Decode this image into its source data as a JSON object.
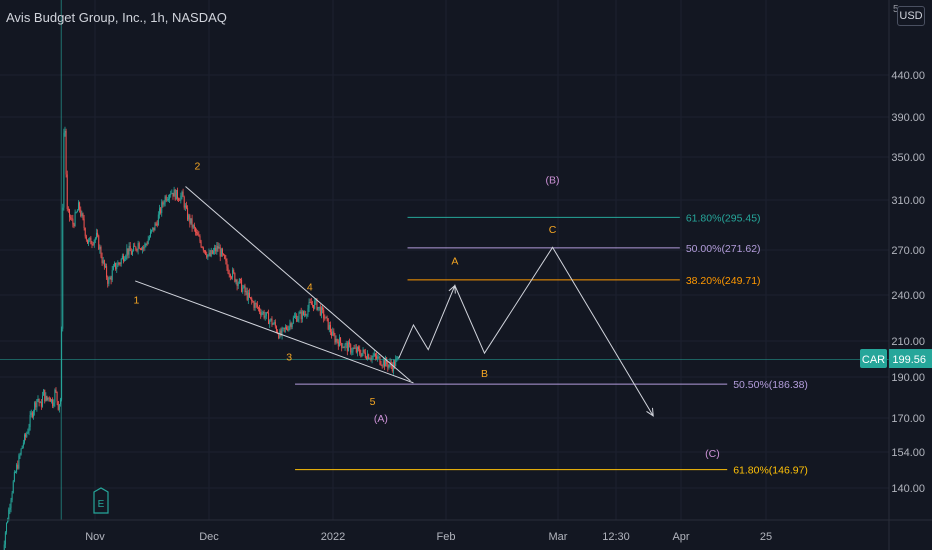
{
  "header": {
    "title": "Avis Budget Group, Inc., 1h, NASDAQ",
    "currency": "USD",
    "price_scale_top_cut": "5"
  },
  "price_badge": {
    "ticker": "CAR",
    "price": "199.56"
  },
  "earnings_marker": "E",
  "colors": {
    "background": "#131722",
    "axis_text": "#b2b5be",
    "candle_up": "#26a69a",
    "candle_down": "#ef5350",
    "wave_orange": "#f5a623",
    "wave_violet": "#ce93d8",
    "fib_teal": "#26a69a",
    "fib_lavender": "#b39ddb",
    "fib_orange": "#ff9800",
    "fib_gold": "#ffc107",
    "price_line": "#26a69a",
    "projection": "#d1d4dc"
  },
  "chart_data": {
    "type": "candlestick",
    "x_tick_labels": [
      "Nov",
      "Dec",
      "2022",
      "Feb",
      "Mar",
      "12:30",
      "Apr",
      "25"
    ],
    "y_tick_labels": [
      "440.00",
      "390.00",
      "350.00",
      "310.00",
      "270.00",
      "240.00",
      "210.00",
      "190.00",
      "170.00",
      "154.00",
      "140.00"
    ],
    "y_scale": "log",
    "current_price": 199.56,
    "price_path": [
      [
        0,
        116
      ],
      [
        0.05,
        124
      ],
      [
        0.1,
        130
      ],
      [
        0.15,
        137
      ],
      [
        0.2,
        143
      ],
      [
        0.25,
        148
      ],
      [
        0.3,
        152
      ],
      [
        0.35,
        158
      ],
      [
        0.4,
        161
      ],
      [
        0.45,
        166
      ],
      [
        0.5,
        172
      ],
      [
        0.55,
        176
      ],
      [
        0.6,
        180
      ],
      [
        0.65,
        175
      ],
      [
        0.7,
        182
      ],
      [
        0.75,
        178
      ],
      [
        0.8,
        181
      ],
      [
        0.85,
        177
      ],
      [
        0.9,
        183
      ],
      [
        0.95,
        176
      ],
      [
        1.0,
        180
      ],
      [
        1.02,
        280
      ],
      [
        1.04,
        370
      ],
      [
        1.06,
        385
      ],
      [
        1.08,
        340
      ],
      [
        1.1,
        300
      ],
      [
        1.2,
        290
      ],
      [
        1.3,
        305
      ],
      [
        1.45,
        275
      ],
      [
        1.6,
        280
      ],
      [
        1.7,
        262
      ],
      [
        1.8,
        248
      ],
      [
        1.9,
        258
      ],
      [
        2.0,
        262
      ],
      [
        2.1,
        270
      ],
      [
        2.2,
        268
      ],
      [
        2.3,
        275
      ],
      [
        2.4,
        272
      ],
      [
        2.6,
        290
      ],
      [
        2.75,
        312
      ],
      [
        2.85,
        318
      ],
      [
        2.95,
        314
      ],
      [
        3.05,
        313
      ],
      [
        3.12,
        298
      ],
      [
        3.3,
        280
      ],
      [
        3.5,
        265
      ],
      [
        3.65,
        272
      ],
      [
        3.8,
        258
      ],
      [
        4.0,
        248
      ],
      [
        4.2,
        236
      ],
      [
        4.4,
        228
      ],
      [
        4.6,
        220
      ],
      [
        4.7,
        213
      ],
      [
        4.8,
        218
      ],
      [
        4.95,
        225
      ],
      [
        5.1,
        227
      ],
      [
        5.2,
        233
      ],
      [
        5.3,
        234
      ],
      [
        5.45,
        225
      ],
      [
        5.6,
        212
      ],
      [
        5.8,
        207
      ],
      [
        6.0,
        204
      ],
      [
        6.2,
        202
      ],
      [
        6.4,
        199
      ],
      [
        6.5,
        197
      ],
      [
        6.6,
        196
      ],
      [
        6.7,
        200
      ]
    ],
    "projection_path": [
      [
        6.7,
        200
      ],
      [
        6.95,
        220
      ],
      [
        7.2,
        205
      ],
      [
        7.65,
        246
      ],
      [
        8.15,
        203
      ],
      [
        9.3,
        272
      ],
      [
        11.0,
        171
      ]
    ],
    "trendlines": [
      [
        [
          3.1,
          322
        ],
        [
          6.9,
          188
        ]
      ],
      [
        [
          2.25,
          249
        ],
        [
          6.95,
          187
        ]
      ]
    ],
    "fib_levels": [
      {
        "label": "61.80%(295.45)",
        "price": 295.45,
        "x_start": 6.85,
        "x_end": 11.45,
        "color_key": "fib_teal"
      },
      {
        "label": "50.00%(271.62)",
        "price": 271.62,
        "x_start": 6.85,
        "x_end": 11.45,
        "color_key": "fib_lavender"
      },
      {
        "label": "38.20%(249.71)",
        "price": 249.71,
        "x_start": 6.85,
        "x_end": 11.45,
        "color_key": "fib_orange"
      },
      {
        "label": "50.50%(186.38)",
        "price": 186.38,
        "x_start": 4.95,
        "x_end": 12.25,
        "color_key": "fib_lavender"
      },
      {
        "label": "61.80%(146.97)",
        "price": 146.97,
        "x_start": 4.95,
        "x_end": 12.25,
        "color_key": "fib_gold"
      }
    ],
    "wave_labels": [
      {
        "text": "1",
        "x": 2.27,
        "price": 234,
        "color_key": "wave_orange"
      },
      {
        "text": "2",
        "x": 3.3,
        "price": 338,
        "color_key": "wave_orange"
      },
      {
        "text": "3",
        "x": 4.85,
        "price": 199,
        "color_key": "wave_orange"
      },
      {
        "text": "4",
        "x": 5.2,
        "price": 243,
        "color_key": "wave_orange"
      },
      {
        "text": "5",
        "x": 6.26,
        "price": 176,
        "color_key": "wave_orange"
      },
      {
        "text": "(A)",
        "x": 6.4,
        "price": 168,
        "color_key": "wave_violet"
      },
      {
        "text": "A",
        "x": 7.65,
        "price": 260,
        "color_key": "wave_orange"
      },
      {
        "text": "B",
        "x": 8.15,
        "price": 190,
        "color_key": "wave_orange"
      },
      {
        "text": "(B)",
        "x": 9.3,
        "price": 325,
        "color_key": "wave_violet"
      },
      {
        "text": "C",
        "x": 9.3,
        "price": 283,
        "color_key": "wave_orange"
      },
      {
        "text": "(C)",
        "x": 12.0,
        "price": 152,
        "color_key": "wave_violet"
      }
    ]
  }
}
